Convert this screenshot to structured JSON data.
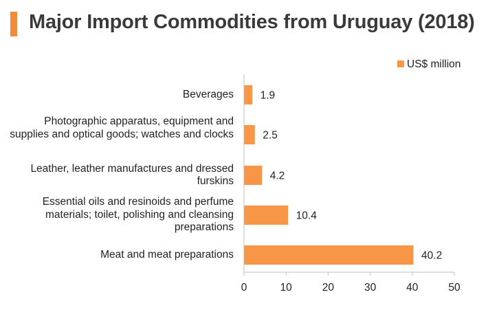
{
  "title": "Major Import Commodities from Uruguay (2018)",
  "colors": {
    "accent": "#F28C3A",
    "bar": "#F79646",
    "axis": "#BFBFBF",
    "title": "#3A3A3A"
  },
  "chart_data": {
    "type": "bar",
    "orientation": "horizontal",
    "title": "Major Import Commodities from Uruguay (2018)",
    "categories": [
      "Beverages",
      "Photographic apparatus, equipment and supplies and optical goods; watches and clocks",
      "Leather, leather manufactures and dressed furskins",
      "Essential oils and resinoids and perfume materials; toilet, polishing and cleansing preparations",
      "Meat and meat preparations"
    ],
    "series": [
      {
        "name": "US$ million",
        "values": [
          1.9,
          2.5,
          4.2,
          10.4,
          40.2
        ]
      }
    ],
    "data_labels": [
      "1.9",
      "2.5",
      "4.2",
      "10.4",
      "40.2"
    ],
    "xlim": [
      0,
      50
    ],
    "xticks": [
      "0",
      "10",
      "20",
      "30",
      "40",
      "50"
    ],
    "xlabel": "",
    "ylabel": "",
    "grid": false,
    "legend_position": "top-right"
  }
}
